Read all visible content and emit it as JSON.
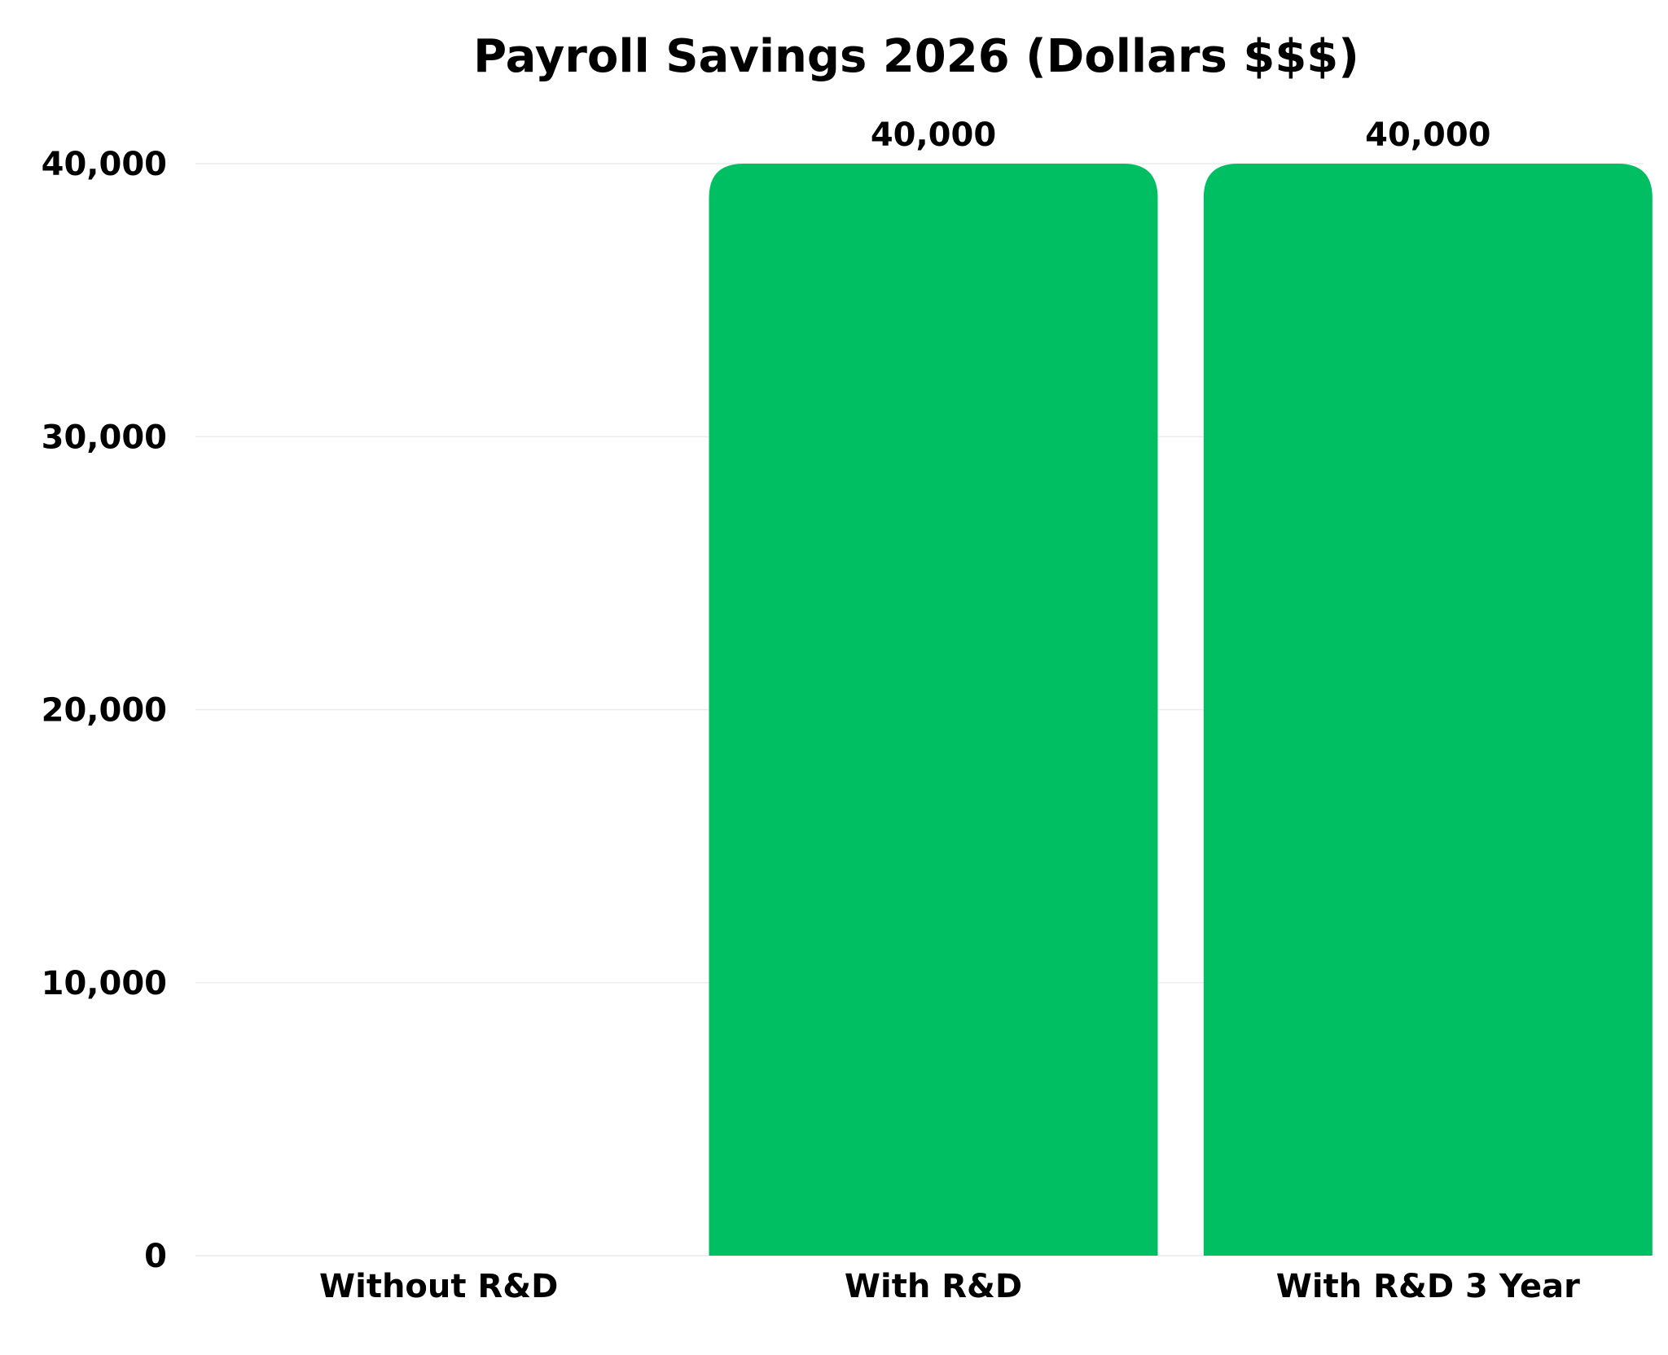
{
  "chart_data": {
    "type": "bar",
    "title": "Payroll Savings 2026 (Dollars $$$)",
    "xlabel": "",
    "ylabel": "",
    "categories": [
      "Without R&D",
      "With R&D",
      "With R&D 3 Year"
    ],
    "values": [
      0,
      40000,
      40000
    ],
    "value_labels": [
      "",
      "40,000",
      "40,000"
    ],
    "ylim": [
      0,
      40000
    ],
    "yticks": [
      0,
      10000,
      20000,
      30000,
      40000
    ],
    "ytick_labels": [
      "0",
      "10,000",
      "20,000",
      "30,000",
      "40,000"
    ],
    "grid": true,
    "legend": "none",
    "bar_color": "#00bf63"
  }
}
